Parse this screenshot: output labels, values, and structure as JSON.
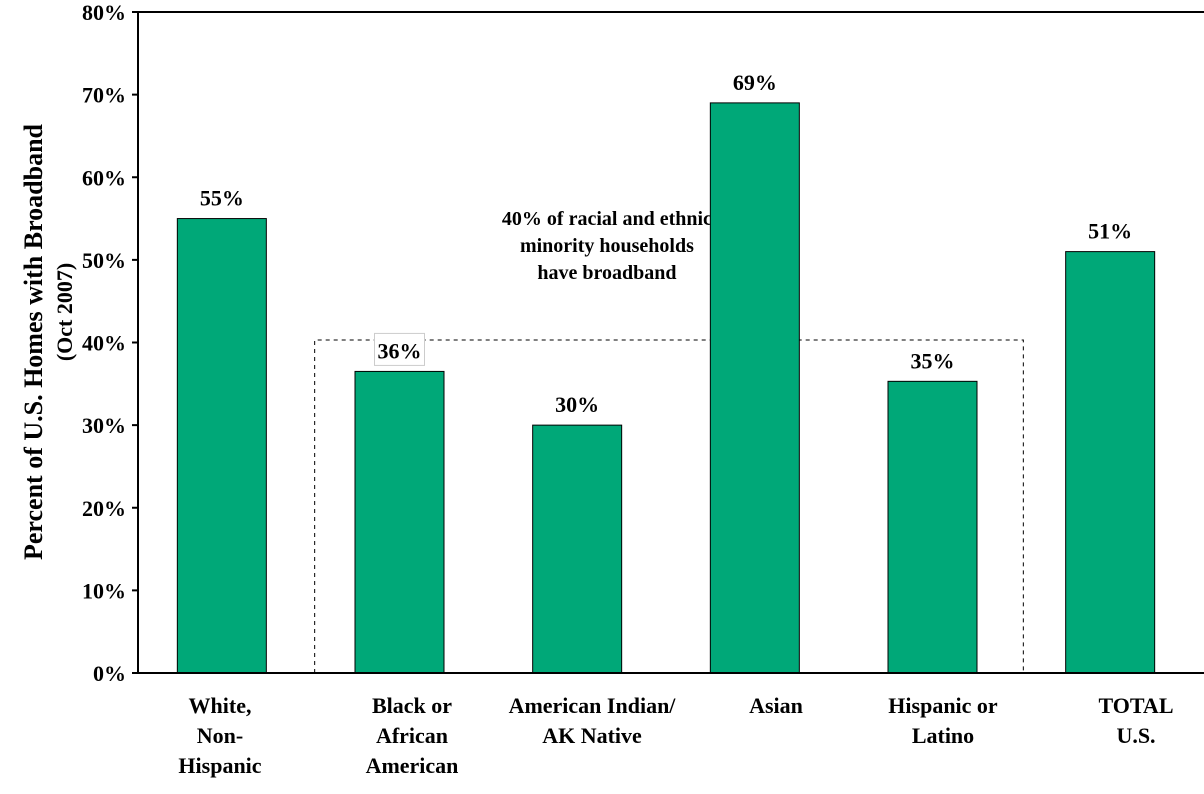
{
  "chart_data": {
    "type": "bar",
    "ylabel": "Percent of U.S. Homes with Broadband",
    "ylabel_sub": "(Oct 2007)",
    "ylim": [
      0,
      80
    ],
    "yticks": [
      "0%",
      "10%",
      "20%",
      "30%",
      "40%",
      "50%",
      "60%",
      "70%",
      "80%"
    ],
    "ytick_values": [
      0,
      10,
      20,
      30,
      40,
      50,
      60,
      70,
      80
    ],
    "grid": false,
    "bar_color": "#00A878",
    "categories": [
      [
        "White,",
        "Non-",
        "Hispanic"
      ],
      [
        "Black or",
        "African",
        "American"
      ],
      [
        "American Indian/",
        "AK Native"
      ],
      [
        "Asian"
      ],
      [
        "Hispanic or",
        "Latino"
      ],
      [
        "TOTAL",
        "U.S."
      ]
    ],
    "values": [
      55,
      36.5,
      30,
      69,
      35.3,
      51
    ],
    "data_labels": [
      "55%",
      "36%",
      "30%",
      "69%",
      "35%",
      "51%"
    ],
    "annotation": {
      "lines": [
        "40% of racial and ethnic",
        "minority households",
        "have broadband"
      ],
      "box_value": 40.3,
      "box_style": "dashed"
    }
  }
}
